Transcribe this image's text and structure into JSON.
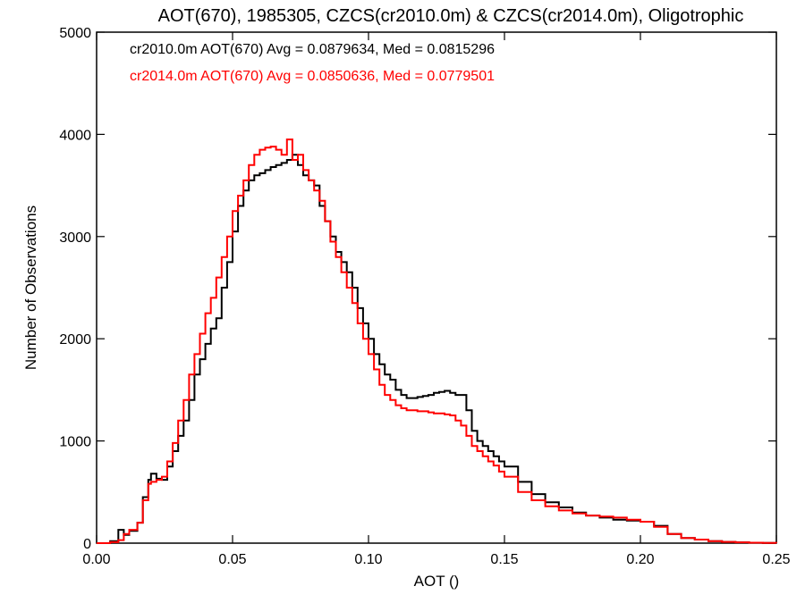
{
  "chart_data": {
    "type": "line",
    "title": "AOT(670), 1985305, CZCS(cr2010.0m) & CZCS(cr2014.0m), Oligotrophic",
    "xlabel": "AOT ()",
    "ylabel": "Number of Observations",
    "xlim": [
      0.0,
      0.25
    ],
    "ylim": [
      0,
      5000
    ],
    "xticks": [
      "0.00",
      "0.05",
      "0.10",
      "0.15",
      "0.20",
      "0.25"
    ],
    "yticks": [
      "0",
      "1000",
      "2000",
      "3000",
      "4000",
      "5000"
    ],
    "xtick_values": [
      0.0,
      0.05,
      0.1,
      0.15,
      0.2,
      0.25
    ],
    "ytick_values": [
      0,
      1000,
      2000,
      3000,
      4000,
      5000
    ],
    "grid": false,
    "series": [
      {
        "color": "#000000",
        "legend": "cr2010.0m AOT(670) Avg = 0.0879634, Med = 0.0815296",
        "x": [
          0.0,
          0.005,
          0.008,
          0.01,
          0.012,
          0.015,
          0.017,
          0.019,
          0.02,
          0.022,
          0.024,
          0.026,
          0.028,
          0.03,
          0.032,
          0.034,
          0.036,
          0.038,
          0.04,
          0.042,
          0.044,
          0.046,
          0.048,
          0.05,
          0.052,
          0.054,
          0.056,
          0.058,
          0.06,
          0.062,
          0.064,
          0.066,
          0.068,
          0.07,
          0.072,
          0.074,
          0.076,
          0.078,
          0.08,
          0.082,
          0.084,
          0.086,
          0.088,
          0.09,
          0.092,
          0.094,
          0.096,
          0.098,
          0.1,
          0.102,
          0.104,
          0.106,
          0.108,
          0.11,
          0.112,
          0.114,
          0.116,
          0.118,
          0.12,
          0.122,
          0.124,
          0.126,
          0.128,
          0.13,
          0.132,
          0.134,
          0.136,
          0.138,
          0.14,
          0.142,
          0.144,
          0.146,
          0.148,
          0.15,
          0.155,
          0.16,
          0.165,
          0.17,
          0.175,
          0.18,
          0.185,
          0.19,
          0.195,
          0.2,
          0.205,
          0.21,
          0.215,
          0.22,
          0.225,
          0.23,
          0.235,
          0.24,
          0.245,
          0.25
        ],
        "y": [
          0,
          20,
          130,
          80,
          120,
          200,
          450,
          620,
          680,
          630,
          620,
          750,
          900,
          1050,
          1200,
          1400,
          1650,
          1800,
          1950,
          2100,
          2200,
          2500,
          2750,
          3050,
          3300,
          3450,
          3550,
          3600,
          3620,
          3650,
          3680,
          3700,
          3720,
          3750,
          3800,
          3700,
          3600,
          3550,
          3500,
          3300,
          3150,
          3000,
          2850,
          2750,
          2650,
          2500,
          2300,
          2150,
          2000,
          1850,
          1750,
          1650,
          1600,
          1500,
          1450,
          1420,
          1420,
          1430,
          1440,
          1450,
          1470,
          1480,
          1490,
          1470,
          1450,
          1450,
          1300,
          1100,
          1000,
          950,
          900,
          850,
          800,
          750,
          600,
          480,
          400,
          350,
          300,
          270,
          250,
          230,
          220,
          210,
          170,
          90,
          50,
          35,
          20,
          12,
          8,
          4,
          2,
          0
        ]
      },
      {
        "color": "#ff0000",
        "legend": "cr2014.0m AOT(670) Avg = 0.0850636, Med = 0.0779501",
        "x": [
          0.0,
          0.005,
          0.008,
          0.01,
          0.012,
          0.015,
          0.017,
          0.019,
          0.02,
          0.022,
          0.024,
          0.026,
          0.028,
          0.03,
          0.032,
          0.034,
          0.036,
          0.038,
          0.04,
          0.042,
          0.044,
          0.046,
          0.048,
          0.05,
          0.052,
          0.054,
          0.056,
          0.058,
          0.06,
          0.062,
          0.064,
          0.066,
          0.068,
          0.07,
          0.072,
          0.074,
          0.076,
          0.078,
          0.08,
          0.082,
          0.084,
          0.086,
          0.088,
          0.09,
          0.092,
          0.094,
          0.096,
          0.098,
          0.1,
          0.102,
          0.104,
          0.106,
          0.108,
          0.11,
          0.112,
          0.114,
          0.116,
          0.118,
          0.12,
          0.122,
          0.124,
          0.126,
          0.128,
          0.13,
          0.132,
          0.134,
          0.136,
          0.138,
          0.14,
          0.142,
          0.144,
          0.146,
          0.148,
          0.15,
          0.155,
          0.16,
          0.165,
          0.17,
          0.175,
          0.18,
          0.185,
          0.19,
          0.195,
          0.2,
          0.205,
          0.21,
          0.215,
          0.22,
          0.225,
          0.23,
          0.235,
          0.24,
          0.245,
          0.25
        ],
        "y": [
          0,
          10,
          30,
          90,
          130,
          200,
          420,
          580,
          600,
          620,
          650,
          800,
          980,
          1200,
          1400,
          1650,
          1850,
          2050,
          2250,
          2400,
          2600,
          2800,
          3000,
          3250,
          3400,
          3550,
          3700,
          3800,
          3850,
          3870,
          3880,
          3850,
          3800,
          3950,
          3750,
          3800,
          3650,
          3550,
          3450,
          3350,
          3150,
          2950,
          2800,
          2650,
          2500,
          2350,
          2150,
          2000,
          1850,
          1700,
          1550,
          1450,
          1400,
          1350,
          1320,
          1300,
          1300,
          1290,
          1290,
          1280,
          1270,
          1270,
          1260,
          1250,
          1200,
          1150,
          1050,
          950,
          900,
          850,
          800,
          760,
          700,
          650,
          500,
          420,
          360,
          320,
          290,
          270,
          260,
          250,
          230,
          210,
          160,
          90,
          50,
          35,
          20,
          12,
          8,
          4,
          2,
          0
        ]
      }
    ]
  }
}
